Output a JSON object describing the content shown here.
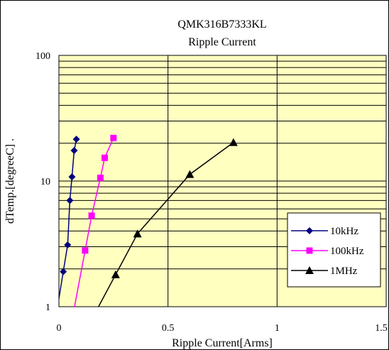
{
  "chart_data": {
    "type": "line",
    "title": "QMK316B7333KL",
    "subtitle": "Ripple Current",
    "xlabel": "Ripple Current[Arms]",
    "ylabel": "dTemp.[degreeC] .",
    "xlim": [
      0,
      1.5
    ],
    "ylim": [
      1,
      100
    ],
    "yscale": "log",
    "x_ticks": [
      "0",
      "0.5",
      "1",
      "1.5"
    ],
    "y_ticks": [
      "1",
      "10",
      "100"
    ],
    "grid": true,
    "legend_position": "bottom-right",
    "plot_background": "#ffffc0",
    "series": [
      {
        "name": "10kHz",
        "color": "#000080",
        "marker": "diamond",
        "points": [
          [
            0.02,
            1.9
          ],
          [
            0.04,
            3.1
          ],
          [
            0.05,
            7.0
          ],
          [
            0.06,
            10.8
          ],
          [
            0.07,
            17.5
          ],
          [
            0.08,
            21.5
          ]
        ]
      },
      {
        "name": "100kHz",
        "color": "#ff00ff",
        "marker": "square",
        "points": [
          [
            0.12,
            2.8
          ],
          [
            0.15,
            5.3
          ],
          [
            0.19,
            10.6
          ],
          [
            0.21,
            15.3
          ],
          [
            0.25,
            22.0
          ]
        ]
      },
      {
        "name": "1MHz",
        "color": "#000000",
        "marker": "triangle",
        "points": [
          [
            0.26,
            1.8
          ],
          [
            0.36,
            3.8
          ],
          [
            0.6,
            11.3
          ],
          [
            0.8,
            20.3
          ]
        ]
      }
    ]
  }
}
